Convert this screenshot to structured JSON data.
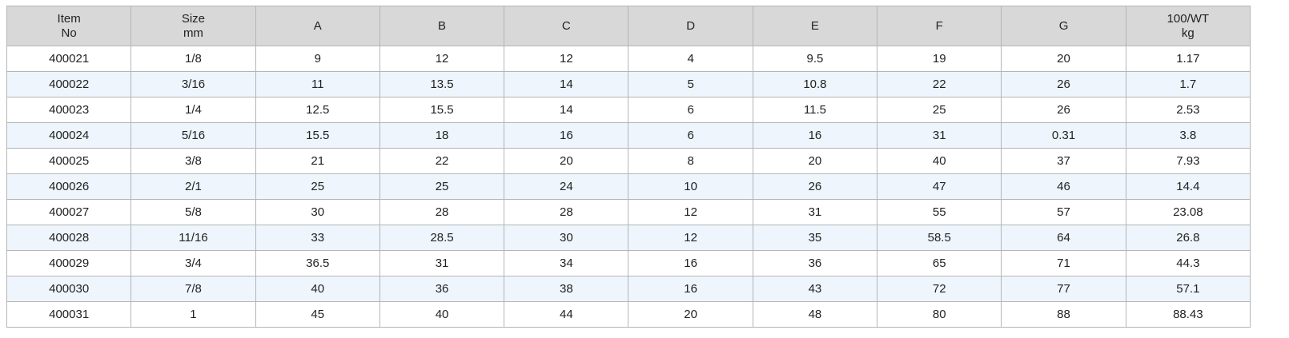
{
  "table": {
    "header": [
      [
        "Item",
        "No"
      ],
      [
        "Size",
        "mm"
      ],
      [
        "A"
      ],
      [
        "B"
      ],
      [
        "C"
      ],
      [
        "D"
      ],
      [
        "E"
      ],
      [
        "F"
      ],
      [
        "G"
      ],
      [
        "100/WT",
        "kg"
      ]
    ],
    "rows": [
      [
        "400021",
        "1/8",
        "9",
        "12",
        "12",
        "4",
        "9.5",
        "19",
        "20",
        "1.17"
      ],
      [
        "400022",
        "3/16",
        "11",
        "13.5",
        "14",
        "5",
        "10.8",
        "22",
        "26",
        "1.7"
      ],
      [
        "400023",
        "1/4",
        "12.5",
        "15.5",
        "14",
        "6",
        "11.5",
        "25",
        "26",
        "2.53"
      ],
      [
        "400024",
        "5/16",
        "15.5",
        "18",
        "16",
        "6",
        "16",
        "31",
        "0.31",
        "3.8"
      ],
      [
        "400025",
        "3/8",
        "21",
        "22",
        "20",
        "8",
        "20",
        "40",
        "37",
        "7.93"
      ],
      [
        "400026",
        "2/1",
        "25",
        "25",
        "24",
        "10",
        "26",
        "47",
        "46",
        "14.4"
      ],
      [
        "400027",
        "5/8",
        "30",
        "28",
        "28",
        "12",
        "31",
        "55",
        "57",
        "23.08"
      ],
      [
        "400028",
        "11/16",
        "33",
        "28.5",
        "30",
        "12",
        "35",
        "58.5",
        "64",
        "26.8"
      ],
      [
        "400029",
        "3/4",
        "36.5",
        "31",
        "34",
        "16",
        "36",
        "65",
        "71",
        "44.3"
      ],
      [
        "400030",
        "7/8",
        "40",
        "36",
        "38",
        "16",
        "43",
        "72",
        "77",
        "57.1"
      ],
      [
        "400031",
        "1",
        "45",
        "40",
        "44",
        "20",
        "48",
        "80",
        "88",
        "88.43"
      ]
    ]
  }
}
